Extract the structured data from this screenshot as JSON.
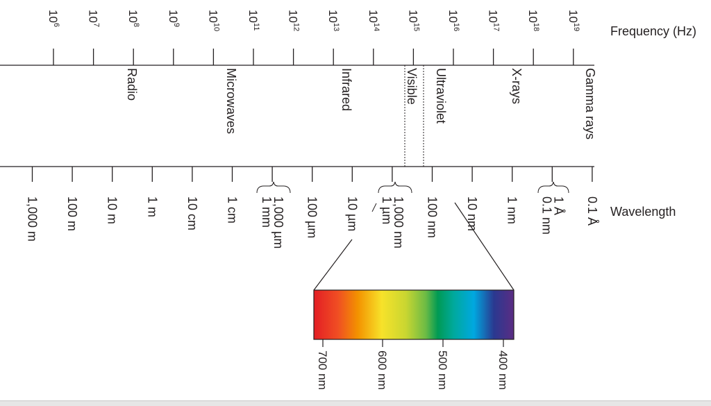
{
  "frequency_axis": {
    "label": "Frequency (Hz)",
    "ticks": [
      {
        "base": "10",
        "exp": "6"
      },
      {
        "base": "10",
        "exp": "7"
      },
      {
        "base": "10",
        "exp": "8"
      },
      {
        "base": "10",
        "exp": "9"
      },
      {
        "base": "10",
        "exp": "10"
      },
      {
        "base": "10",
        "exp": "11"
      },
      {
        "base": "10",
        "exp": "12"
      },
      {
        "base": "10",
        "exp": "13"
      },
      {
        "base": "10",
        "exp": "14"
      },
      {
        "base": "10",
        "exp": "15"
      },
      {
        "base": "10",
        "exp": "16"
      },
      {
        "base": "10",
        "exp": "17"
      },
      {
        "base": "10",
        "exp": "18"
      },
      {
        "base": "10",
        "exp": "19"
      }
    ]
  },
  "bands": [
    "Radio",
    "Microwaves",
    "Infrared",
    "Visible",
    "Ultraviolet",
    "X-rays",
    "Gamma rays"
  ],
  "wavelength_axis": {
    "label": "Wavelength",
    "ticks": [
      [
        "1,000 m"
      ],
      [
        "100 m"
      ],
      [
        "10 m"
      ],
      [
        "1 m"
      ],
      [
        "10 cm"
      ],
      [
        "1 cm"
      ],
      [
        "1,000 µm",
        "1 mm"
      ],
      [
        "100 µm"
      ],
      [
        "10 µm"
      ],
      [
        "1,000 nm",
        "1 µm"
      ],
      [
        "100 nm"
      ],
      [
        "10 nm"
      ],
      [
        "1 nm"
      ],
      [
        "1 Å",
        "0.1 nm"
      ],
      [
        "0.1 Å"
      ]
    ]
  },
  "visible_spectrum": {
    "labels": [
      "700 nm",
      "600 nm",
      "500 nm",
      "400 nm"
    ],
    "colors": [
      "#e31e24",
      "#f39200",
      "#f7e22a",
      "#93c83e",
      "#009a54",
      "#00a8e0",
      "#2a3990",
      "#5b2c83"
    ]
  }
}
